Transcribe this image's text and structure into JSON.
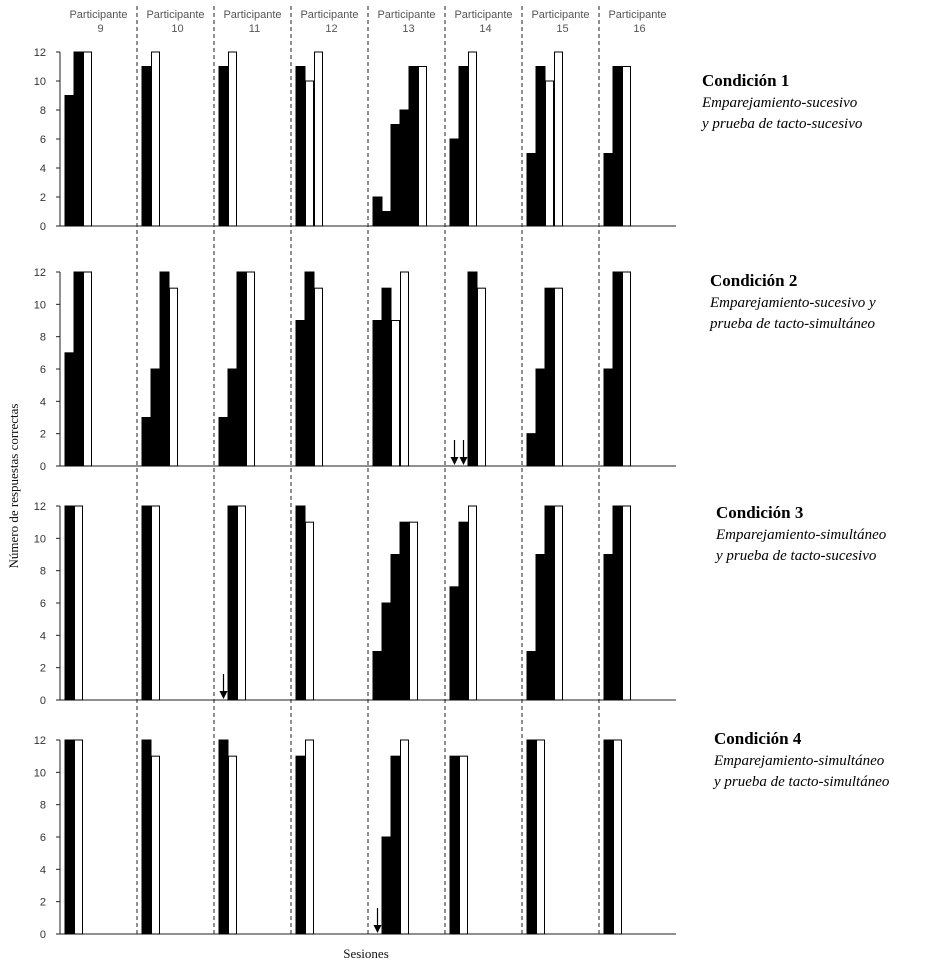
{
  "chart_data": {
    "type": "bar",
    "xlabel": "Sesiones",
    "ylabel": "Número de respuestas correctas",
    "ylim": [
      0,
      12
    ],
    "yticks": [
      "0",
      "2",
      "4",
      "6",
      "8",
      "10",
      "12"
    ],
    "participants": [
      {
        "line1": "Participante",
        "line2": "9"
      },
      {
        "line1": "Participante",
        "line2": "10"
      },
      {
        "line1": "Participante",
        "line2": "11"
      },
      {
        "line1": "Participante",
        "line2": "12"
      },
      {
        "line1": "Participante",
        "line2": "13"
      },
      {
        "line1": "Participante",
        "line2": "14"
      },
      {
        "line1": "Participante",
        "line2": "15"
      },
      {
        "line1": "Participante",
        "line2": "16"
      }
    ],
    "conditions": [
      {
        "title": "Condición 1",
        "desc": [
          "Emparejamiento-sucesivo",
          "y prueba de tacto-sucesivo"
        ],
        "panels": [
          {
            "bars": [
              9,
              12
            ],
            "probe": [
              12
            ],
            "arrows": []
          },
          {
            "bars": [
              11
            ],
            "probe": [
              12
            ],
            "arrows": []
          },
          {
            "bars": [
              11
            ],
            "probe": [
              12
            ],
            "arrows": []
          },
          {
            "bars": [
              11
            ],
            "probe": [
              10,
              12
            ],
            "arrows": []
          },
          {
            "bars": [
              2,
              1,
              7,
              8,
              11
            ],
            "probe": [
              11
            ],
            "arrows": []
          },
          {
            "bars": [
              6,
              11
            ],
            "probe": [
              12
            ],
            "arrows": []
          },
          {
            "bars": [
              5,
              11
            ],
            "probe": [
              10,
              12
            ],
            "arrows": []
          },
          {
            "bars": [
              5,
              11
            ],
            "probe": [
              11
            ],
            "arrows": []
          }
        ]
      },
      {
        "title": "Condición 2",
        "desc": [
          "Emparejamiento-sucesivo y",
          "prueba de tacto-simultáneo"
        ],
        "panels": [
          {
            "bars": [
              7,
              12
            ],
            "probe": [
              12
            ],
            "arrows": []
          },
          {
            "bars": [
              3,
              6,
              12
            ],
            "probe": [
              11
            ],
            "arrows": []
          },
          {
            "bars": [
              3,
              6,
              12
            ],
            "probe": [
              12
            ],
            "arrows": []
          },
          {
            "bars": [
              9,
              12
            ],
            "probe": [
              11
            ],
            "arrows": []
          },
          {
            "bars": [
              9,
              11
            ],
            "probe": [
              9,
              12
            ],
            "arrows": []
          },
          {
            "bars": [
              0,
              0,
              12
            ],
            "probe": [
              11
            ],
            "arrows": [
              0,
              1
            ]
          },
          {
            "bars": [
              2,
              6,
              11
            ],
            "probe": [
              11
            ],
            "arrows": []
          },
          {
            "bars": [
              6,
              12
            ],
            "probe": [
              12
            ],
            "arrows": []
          }
        ]
      },
      {
        "title": "Condición 3",
        "desc": [
          "Emparejamiento-simultáneo",
          "y prueba de tacto-sucesivo"
        ],
        "panels": [
          {
            "bars": [
              12
            ],
            "probe": [
              12
            ],
            "arrows": []
          },
          {
            "bars": [
              12
            ],
            "probe": [
              12
            ],
            "arrows": []
          },
          {
            "bars": [
              0,
              12
            ],
            "probe": [
              12
            ],
            "arrows": [
              0
            ]
          },
          {
            "bars": [
              12
            ],
            "probe": [
              11
            ],
            "arrows": []
          },
          {
            "bars": [
              3,
              6,
              9,
              11
            ],
            "probe": [
              11
            ],
            "arrows": []
          },
          {
            "bars": [
              7,
              11
            ],
            "probe": [
              12
            ],
            "arrows": []
          },
          {
            "bars": [
              3,
              9,
              12
            ],
            "probe": [
              12
            ],
            "arrows": []
          },
          {
            "bars": [
              9,
              12
            ],
            "probe": [
              12
            ],
            "arrows": []
          }
        ]
      },
      {
        "title": "Condición 4",
        "desc": [
          "Emparejamiento-simultáneo",
          "y prueba de tacto-simultáneo"
        ],
        "panels": [
          {
            "bars": [
              12
            ],
            "probe": [
              12
            ],
            "arrows": []
          },
          {
            "bars": [
              12
            ],
            "probe": [
              11
            ],
            "arrows": []
          },
          {
            "bars": [
              12
            ],
            "probe": [
              11
            ],
            "arrows": []
          },
          {
            "bars": [
              11
            ],
            "probe": [
              12
            ],
            "arrows": []
          },
          {
            "bars": [
              0,
              6,
              11
            ],
            "probe": [
              12
            ],
            "arrows": [
              0
            ]
          },
          {
            "bars": [
              11
            ],
            "probe": [
              11
            ],
            "arrows": []
          },
          {
            "bars": [
              12
            ],
            "probe": [
              12
            ],
            "arrows": []
          },
          {
            "bars": [
              12
            ],
            "probe": [
              12
            ],
            "arrows": []
          }
        ]
      }
    ]
  }
}
